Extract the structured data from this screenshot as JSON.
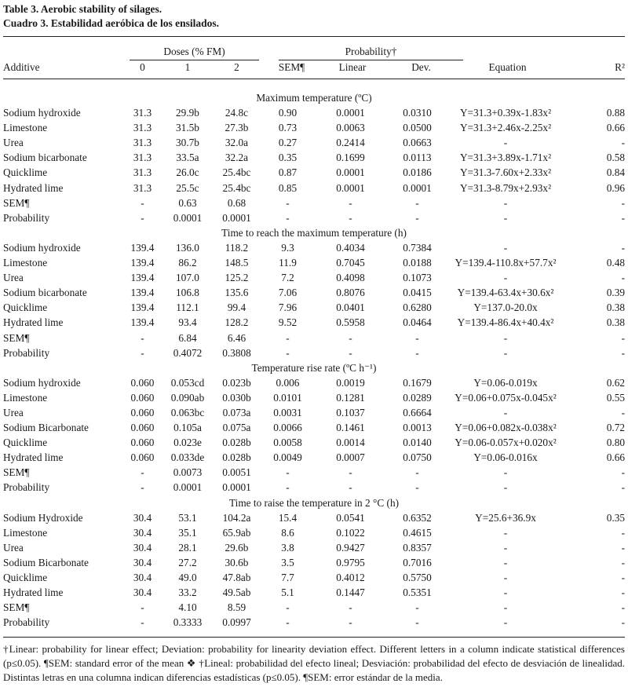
{
  "title_en": "Table 3. Aerobic stability of silages.",
  "title_es": "Cuadro 3. Estabilidad aeróbica de los ensilados.",
  "header": {
    "doses_group": "Doses (% FM)",
    "probability_group": "Probability†",
    "additive": "Additive",
    "dose0": "0",
    "dose1": "1",
    "dose2": "2",
    "sem": "SEM¶",
    "linear": "Linear",
    "dev": "Dev.",
    "equation": "Equation",
    "r2": "R²"
  },
  "sections": [
    {
      "title": "Maximum temperature (ºC)",
      "rows": [
        [
          "Sodium hydroxide",
          "31.3",
          "29.9b",
          "24.8c",
          "0.90",
          "0.0001",
          "0.0310",
          "Y=31.3+0.39x-1.83x²",
          "0.88"
        ],
        [
          "Limestone",
          "31.3",
          "31.5b",
          "27.3b",
          "0.73",
          "0.0063",
          "0.0500",
          "Y=31.3+2.46x-2.25x²",
          "0.66"
        ],
        [
          "Urea",
          "31.3",
          "30.7b",
          "32.0a",
          "0.27",
          "0.2414",
          "0.0663",
          "-",
          "-"
        ],
        [
          "Sodium bicarbonate",
          "31.3",
          "33.5a",
          "32.2a",
          "0.35",
          "0.1699",
          "0.0113",
          "Y=31.3+3.89x-1.71x²",
          "0.58"
        ],
        [
          "Quicklime",
          "31.3",
          "26.0c",
          "25.4bc",
          "0.87",
          "0.0001",
          "0.0186",
          "Y=31.3-7.60x+2.33x²",
          "0.84"
        ],
        [
          "Hydrated lime",
          "31.3",
          "25.5c",
          "25.4bc",
          "0.85",
          "0.0001",
          "0.0001",
          "Y=31.3-8.79x+2.93x²",
          "0.96"
        ],
        [
          "SEM¶",
          "-",
          "0.63",
          "0.68",
          "-",
          "-",
          "-",
          "-",
          "-"
        ],
        [
          "Probability",
          "-",
          "0.0001",
          "0.0001",
          "-",
          "-",
          "-",
          "-",
          "-"
        ]
      ]
    },
    {
      "title": "Time to reach the maximum temperature (h)",
      "rows": [
        [
          "Sodium hydroxide",
          "139.4",
          "136.0",
          "118.2",
          "9.3",
          "0.4034",
          "0.7384",
          "-",
          "-"
        ],
        [
          "Limestone",
          "139.4",
          "86.2",
          "148.5",
          "11.9",
          "0.7045",
          "0.0188",
          "Y=139.4-110.8x+57.7x²",
          "0.48"
        ],
        [
          "Urea",
          "139.4",
          "107.0",
          "125.2",
          "7.2",
          "0.4098",
          "0.1073",
          "-",
          "-"
        ],
        [
          "Sodium bicarbonate",
          "139.4",
          "106.8",
          "135.6",
          "7.06",
          "0.8076",
          "0.0415",
          "Y=139.4-63.4x+30.6x²",
          "0.39"
        ],
        [
          "Quicklime",
          "139.4",
          "112.1",
          "99.4",
          "7.96",
          "0.0401",
          "0.6280",
          "Y=137.0-20.0x",
          "0.38"
        ],
        [
          "Hydrated lime",
          "139.4",
          "93.4",
          "128.2",
          "9.52",
          "0.5958",
          "0.0464",
          "Y=139.4-86.4x+40.4x²",
          "0.38"
        ],
        [
          "SEM¶",
          "-",
          "6.84",
          "6.46",
          "-",
          "-",
          "-",
          "-",
          "-"
        ],
        [
          "Probability",
          "-",
          "0.4072",
          "0.3808",
          "-",
          "-",
          "-",
          "-",
          "-"
        ]
      ]
    },
    {
      "title": "Temperature rise rate (ºC h⁻¹)",
      "rows": [
        [
          "Sodium hydroxide",
          "0.060",
          "0.053cd",
          "0.023b",
          "0.006",
          "0.0019",
          "0.1679",
          "Y=0.06-0.019x",
          "0.62"
        ],
        [
          "Limestone",
          "0.060",
          "0.090ab",
          "0.030b",
          "0.0101",
          "0.1281",
          "0.0289",
          "Y=0.06+0.075x-0.045x²",
          "0.55"
        ],
        [
          "Urea",
          "0.060",
          "0.063bc",
          "0.073a",
          "0.0031",
          "0.1037",
          "0.6664",
          "-",
          "-"
        ],
        [
          "Sodium Bicarbonate",
          "0.060",
          "0.105a",
          "0.075a",
          "0.0066",
          "0.1461",
          "0.0013",
          "Y=0.06+0.082x-0.038x²",
          "0.72"
        ],
        [
          "Quicklime",
          "0.060",
          "0.023e",
          "0.028b",
          "0.0058",
          "0.0014",
          "0.0140",
          "Y=0.06-0.057x+0.020x²",
          "0.80"
        ],
        [
          "Hydrated lime",
          "0.060",
          "0.033de",
          "0.028b",
          "0.0049",
          "0.0007",
          "0.0750",
          "Y=0.06-0.016x",
          "0.66"
        ],
        [
          "SEM¶",
          "-",
          "0.0073",
          "0.0051",
          "-",
          "-",
          "-",
          "-",
          "-"
        ],
        [
          "Probability",
          "-",
          "0.0001",
          "0.0001",
          "-",
          "-",
          "-",
          "-",
          "-"
        ]
      ]
    },
    {
      "title": "Time to raise the temperature in 2 °C (h)",
      "rows": [
        [
          "Sodium Hydroxide",
          "30.4",
          "53.1",
          "104.2a",
          "15.4",
          "0.0541",
          "0.6352",
          "Y=25.6+36.9x",
          "0.35"
        ],
        [
          "Limestone",
          "30.4",
          "35.1",
          "65.9ab",
          "8.6",
          "0.1022",
          "0.4615",
          "-",
          "-"
        ],
        [
          "Urea",
          "30.4",
          "28.1",
          "29.6b",
          "3.8",
          "0.9427",
          "0.8357",
          "-",
          "-"
        ],
        [
          "Sodium Bicarbonate",
          "30.4",
          "27.2",
          "30.6b",
          "3.5",
          "0.9795",
          "0.7016",
          "-",
          "-"
        ],
        [
          "Quicklime",
          "30.4",
          "49.0",
          "47.8ab",
          "7.7",
          "0.4012",
          "0.5750",
          "-",
          "-"
        ],
        [
          "Hydrated lime",
          "30.4",
          "33.2",
          "49.5ab",
          "5.1",
          "0.1447",
          "0.5351",
          "-",
          "-"
        ],
        [
          "SEM¶",
          "-",
          "4.10",
          "8.59",
          "-",
          "-",
          "-",
          "-",
          "-"
        ],
        [
          "Probability",
          "-",
          "0.3333",
          "0.0997",
          "-",
          "-",
          "-",
          "-",
          "-"
        ]
      ]
    }
  ],
  "footnote": "†Linear: probability for linear effect; Deviation: probability for linearity deviation effect. Different letters in a column indicate statistical differences (p≤0.05). ¶SEM: standard error of the mean ❖ †Lineal: probabilidad del efecto lineal; Desviación: probabilidad del efecto de desviación de linealidad. Distintas letras en una columna indican diferencias estadísticas (p≤0.05). ¶SEM: error estándar de la media."
}
